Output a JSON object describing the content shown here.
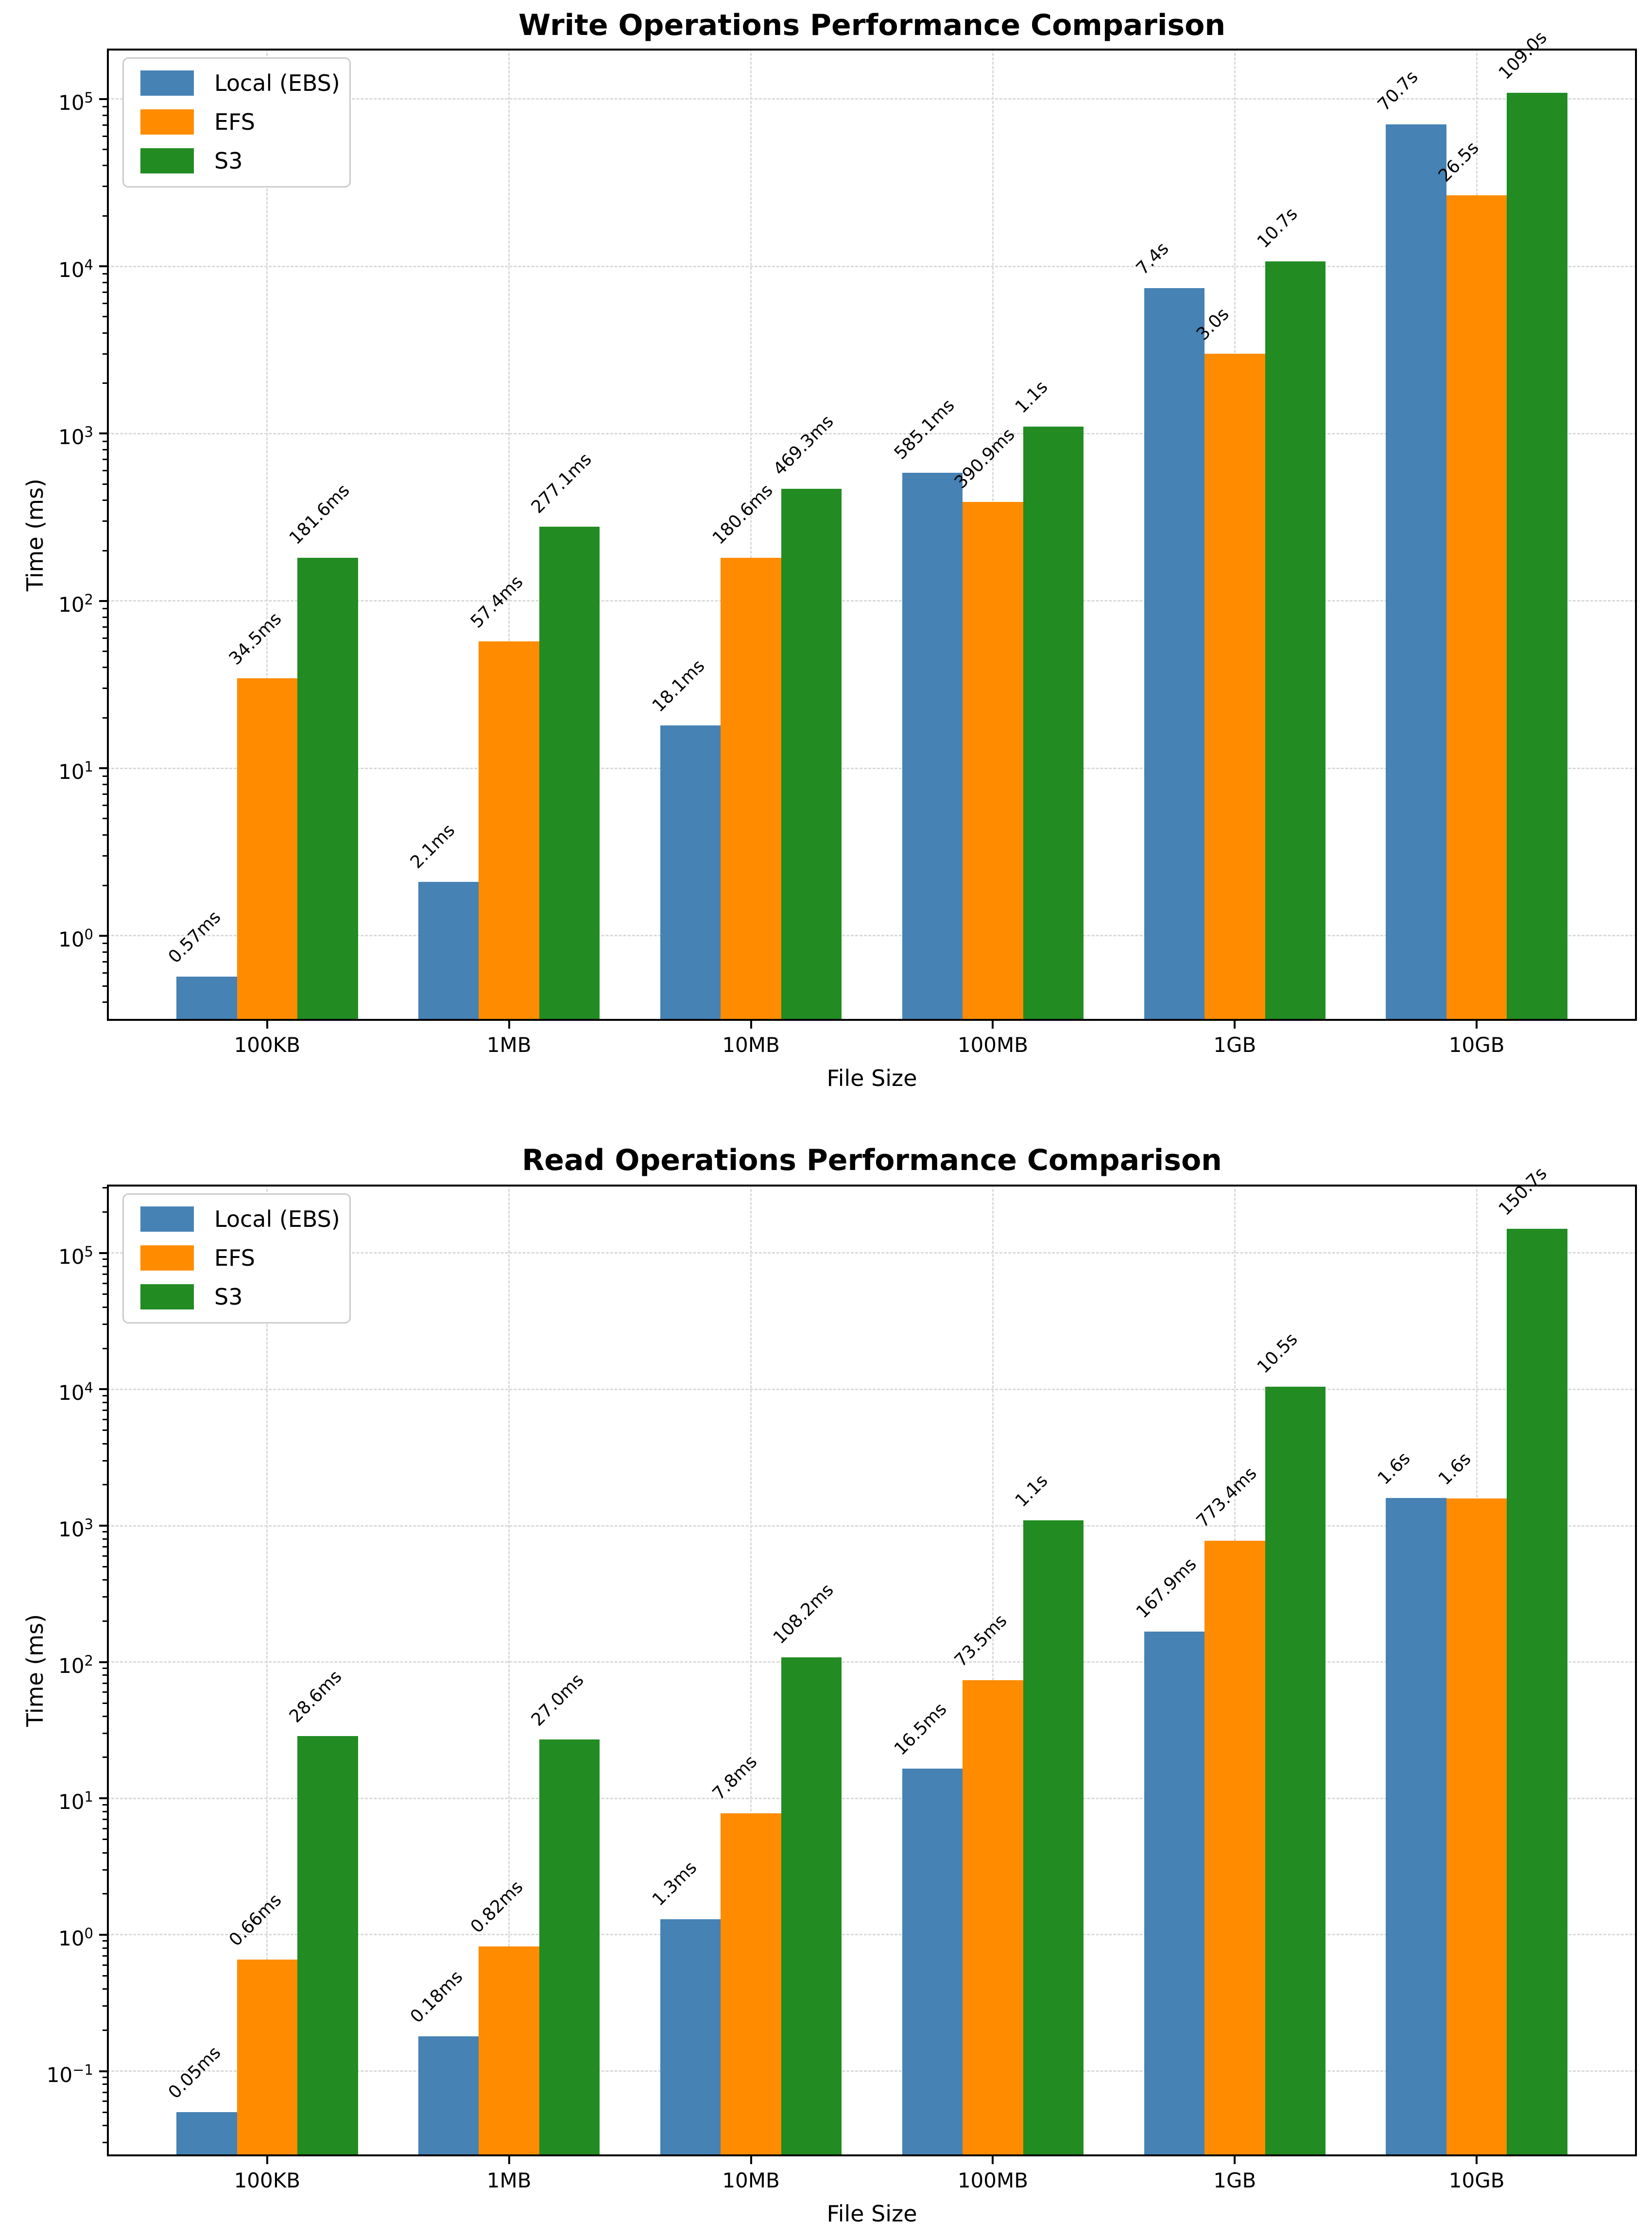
{
  "chart_data": [
    {
      "type": "bar",
      "title": "Write Operations Performance Comparison",
      "xlabel": "File Size",
      "ylabel": "Time (ms)",
      "yscale": "log",
      "grid": true,
      "legend_position": "upper left",
      "categories": [
        "100KB",
        "1MB",
        "10MB",
        "100MB",
        "1GB",
        "10GB"
      ],
      "ytick_exponents": [
        0,
        1,
        2,
        3,
        4,
        5
      ],
      "ylim_exp": [
        -0.509,
        5.301
      ],
      "series": [
        {
          "name": "Local (EBS)",
          "color": "#4682b4",
          "values": [
            0.57,
            2.1,
            18.1,
            585.1,
            7400,
            70700
          ],
          "labels": [
            "0.57ms",
            "2.1ms",
            "18.1ms",
            "585.1ms",
            "7.4s",
            "70.7s"
          ]
        },
        {
          "name": "EFS",
          "color": "#ff8c00",
          "values": [
            34.5,
            57.4,
            180.6,
            390.9,
            3000,
            26500
          ],
          "labels": [
            "34.5ms",
            "57.4ms",
            "180.6ms",
            "390.9ms",
            "3.0s",
            "26.5s"
          ]
        },
        {
          "name": "S3",
          "color": "#228b22",
          "values": [
            181.6,
            277.1,
            469.3,
            1100,
            10700,
            109000
          ],
          "labels": [
            "181.6ms",
            "277.1ms",
            "469.3ms",
            "1.1s",
            "10.7s",
            "109.0s"
          ]
        }
      ]
    },
    {
      "type": "bar",
      "title": "Read Operations Performance Comparison",
      "xlabel": "File Size",
      "ylabel": "Time (ms)",
      "yscale": "log",
      "grid": true,
      "legend_position": "upper left",
      "categories": [
        "100KB",
        "1MB",
        "10MB",
        "100MB",
        "1GB",
        "10GB"
      ],
      "ytick_exponents": [
        -1,
        0,
        1,
        2,
        3,
        4,
        5
      ],
      "ylim_exp": [
        -1.625,
        5.502
      ],
      "series": [
        {
          "name": "Local (EBS)",
          "color": "#4682b4",
          "values": [
            0.05,
            0.18,
            1.3,
            16.5,
            167.9,
            1600
          ],
          "labels": [
            "0.05ms",
            "0.18ms",
            "1.3ms",
            "16.5ms",
            "167.9ms",
            "1.6s"
          ]
        },
        {
          "name": "EFS",
          "color": "#ff8c00",
          "values": [
            0.66,
            0.82,
            7.8,
            73.5,
            773.4,
            1580
          ],
          "labels": [
            "0.66ms",
            "0.82ms",
            "7.8ms",
            "73.5ms",
            "773.4ms",
            "1.6s"
          ]
        },
        {
          "name": "S3",
          "color": "#228b22",
          "values": [
            28.6,
            27.0,
            108.2,
            1100,
            10500,
            150700
          ],
          "labels": [
            "28.6ms",
            "27.0ms",
            "108.2ms",
            "1.1s",
            "10.5s",
            "150.7s"
          ]
        }
      ]
    }
  ]
}
